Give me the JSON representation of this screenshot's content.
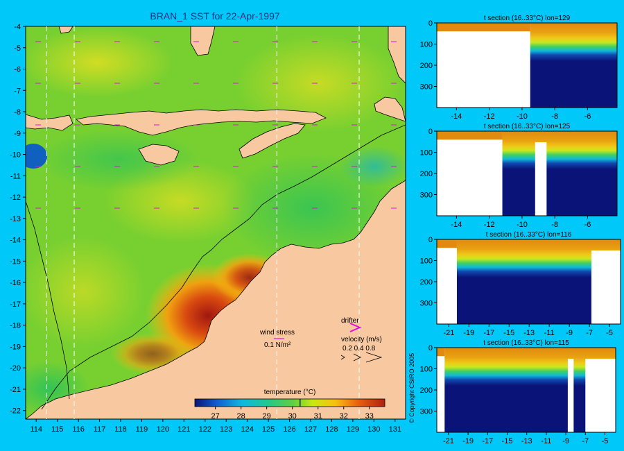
{
  "colors": {
    "background": "#00c8f8",
    "land": "#f8c8a0",
    "deep": "#0a1478",
    "surface": "#e08a10",
    "drifter": "#e010e0"
  },
  "chart_data": [
    {
      "type": "heatmap",
      "title": "BRAN_1 SST for 22-Apr-1997",
      "x_ticks": [
        114,
        115,
        116,
        117,
        118,
        119,
        120,
        121,
        122,
        123,
        124,
        125,
        126,
        127,
        128,
        129,
        130,
        131
      ],
      "y_ticks": [
        -4,
        -5,
        -6,
        -7,
        -8,
        -9,
        -10,
        -11,
        -12,
        -13,
        -14,
        -15,
        -16,
        -17,
        -18,
        -19,
        -20,
        -21,
        -22
      ],
      "xlim": [
        113.5,
        131.5
      ],
      "ylim": [
        -22.4,
        -4
      ],
      "section_lines_lon": [
        114.5,
        115.8,
        125.4,
        129.3
      ],
      "colorbar": {
        "label": "temperature (°C)",
        "range": [
          26.2,
          33.6
        ],
        "ticks": [
          27,
          28,
          29,
          30,
          31,
          32,
          33
        ],
        "marker": 30.3
      },
      "legend": {
        "wind_label": "wind stress",
        "wind_scale": "0.1 N/m²",
        "drifter_label": "drifter",
        "velocity_label": "velocity (m/s)",
        "velocity_scale": "0.2 0.4 0.8"
      }
    },
    {
      "type": "heatmap",
      "title": "t section (16..33°C) lon=129",
      "x_ticks": [
        -14,
        -12,
        -10,
        -8,
        -6
      ],
      "xlim": [
        -15.2,
        -4.2
      ],
      "y_ticks": [
        0,
        100,
        200,
        300
      ],
      "ylim": [
        0,
        400
      ],
      "ocean_start": -9.5,
      "land_gaps": []
    },
    {
      "type": "heatmap",
      "title": "t section (16..33°C) lon=125",
      "x_ticks": [
        -14,
        -12,
        -10,
        -8,
        -6
      ],
      "xlim": [
        -15.2,
        -4.2
      ],
      "y_ticks": [
        0,
        100,
        200,
        300
      ],
      "ylim": [
        0,
        400
      ],
      "ocean_start": -11.2,
      "land_gaps": [
        [
          -9.2,
          -8.5
        ]
      ]
    },
    {
      "type": "heatmap",
      "title": "t section (16..33°C) lon=116",
      "x_ticks": [
        -21,
        -19,
        -17,
        -15,
        -13,
        -11,
        -9,
        -7,
        -5
      ],
      "xlim": [
        -22.2,
        -3.9
      ],
      "y_ticks": [
        0,
        100,
        200,
        300
      ],
      "ylim": [
        0,
        400
      ],
      "ocean_start": -20.2,
      "land_gaps": [
        [
          -6.8,
          -3.9
        ]
      ]
    },
    {
      "type": "heatmap",
      "title": "t section (16..33°C) lon=115",
      "x_ticks": [
        -21,
        -19,
        -17,
        -15,
        -13,
        -11,
        -9,
        -7,
        -5
      ],
      "xlim": [
        -22.2,
        -3.9
      ],
      "y_ticks": [
        0,
        100,
        200,
        300
      ],
      "ylim": [
        0,
        400
      ],
      "ocean_start": -21.4,
      "land_gaps": [
        [
          -8.8,
          -8.2
        ],
        [
          -7.0,
          -3.9
        ]
      ]
    }
  ],
  "copyright": "© Copyright CSIRO 2005"
}
